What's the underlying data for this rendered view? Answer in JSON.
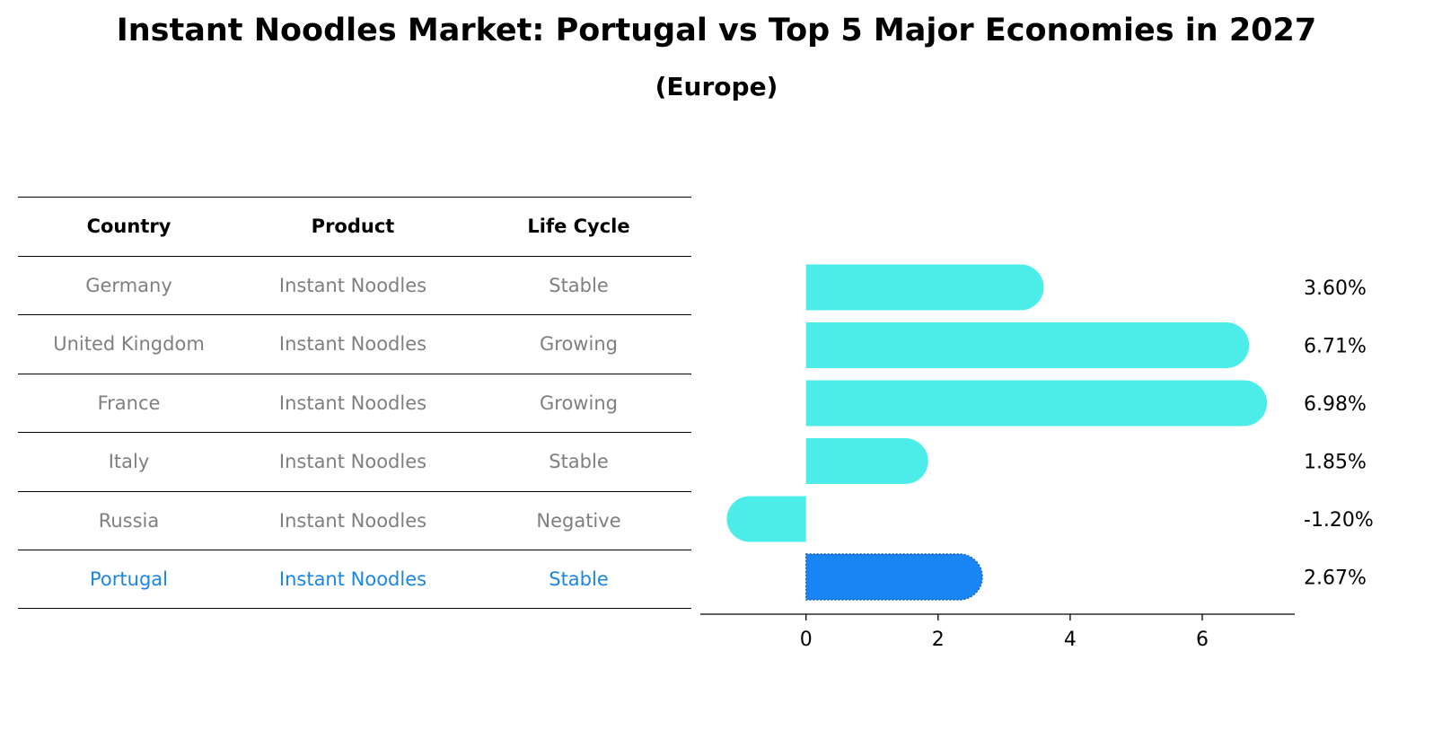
{
  "title": "Instant Noodles Market: Portugal vs Top 5 Major Economies in 2027",
  "subtitle": "(Europe)",
  "table": {
    "headers": [
      "Country",
      "Product",
      "Life Cycle"
    ],
    "rows": [
      [
        "Germany",
        "Instant Noodles",
        "Stable"
      ],
      [
        "United Kingdom",
        "Instant Noodles",
        "Growing"
      ],
      [
        "France",
        "Instant Noodles",
        "Growing"
      ],
      [
        "Italy",
        "Instant Noodles",
        "Stable"
      ],
      [
        "Russia",
        "Instant Noodles",
        "Negative"
      ],
      [
        "Portugal",
        "Instant Noodles",
        "Stable"
      ]
    ]
  },
  "colors": {
    "bar": "#4cede9",
    "highlight": "#1a86f5",
    "highlight_text": "#1a86e6",
    "muted_text": "#7f7f7f"
  },
  "chart_data": {
    "type": "bar",
    "orientation": "horizontal",
    "categories": [
      "Germany",
      "United Kingdom",
      "France",
      "Italy",
      "Russia",
      "Portugal"
    ],
    "values": [
      3.6,
      6.71,
      6.98,
      1.85,
      -1.2,
      2.67
    ],
    "value_labels": [
      "3.60%",
      "6.71%",
      "6.98%",
      "1.85%",
      "-1.20%",
      "2.67%"
    ],
    "highlight_index": 5,
    "xticks": [
      0,
      2,
      4,
      6
    ],
    "xlim": [
      -1.6,
      7.4
    ],
    "grid": false
  }
}
